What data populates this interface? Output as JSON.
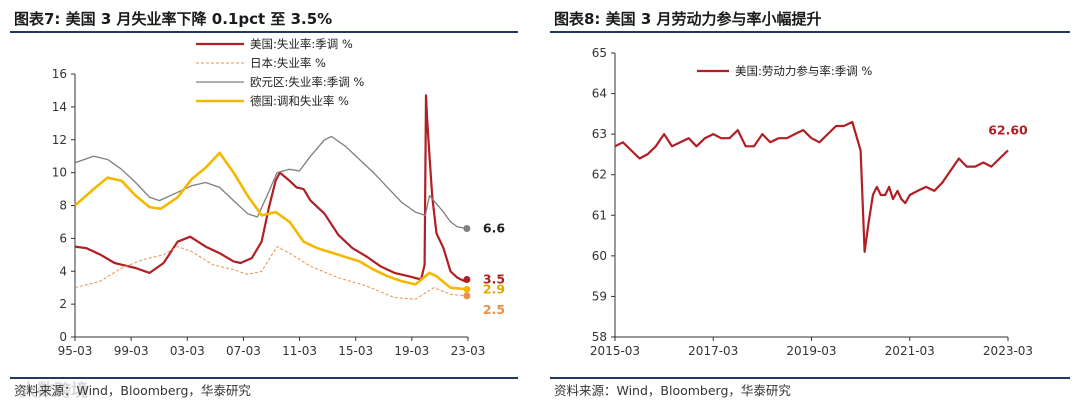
{
  "left": {
    "title": "图表7:  美国 3 月失业率下降 0.1pct 至 3.5%",
    "source": "资料来源：Wind，Bloomberg，华泰研究",
    "watermark": "大数跨境"
  },
  "right": {
    "title": "图表8:  美国 3 月劳动力参与率小幅提升",
    "source": "资料来源：Wind，Bloomberg，华泰研究"
  },
  "chart_data": [
    {
      "type": "line",
      "title": "美国 3 月失业率下降 0.1pct 至 3.5%",
      "xlabel": "",
      "ylabel": "",
      "xlim": [
        1995.17,
        2023.25
      ],
      "ylim": [
        0,
        16
      ],
      "x_ticks": [
        "95-03",
        "99-03",
        "03-03",
        "07-03",
        "11-03",
        "15-03",
        "19-03",
        "23-03"
      ],
      "y_ticks": [
        0,
        2,
        4,
        6,
        8,
        10,
        12,
        14,
        16
      ],
      "legend_position": "top-center",
      "grid": false,
      "series": [
        {
          "name": "美国:失业率:季调 %",
          "color": "#b01f24",
          "style": "solid",
          "end_label": "3.5",
          "x": [
            1995.17,
            1996.0,
            1997.0,
            1998.0,
            1998.5,
            1999.5,
            2000.5,
            2001.5,
            2002.5,
            2003.4,
            2004.5,
            2005.5,
            2006.5,
            2007.0,
            2007.8,
            2008.5,
            2009.0,
            2009.5,
            2009.8,
            2010.5,
            2011.0,
            2011.5,
            2012.0,
            2013.0,
            2014.0,
            2015.0,
            2016.0,
            2017.0,
            2018.0,
            2019.0,
            2019.9,
            2020.15,
            2020.25,
            2020.33,
            2020.5,
            2020.7,
            2021.0,
            2021.5,
            2022.0,
            2022.5,
            2023.0,
            2023.17
          ],
          "y": [
            5.5,
            5.4,
            5.0,
            4.5,
            4.4,
            4.2,
            3.9,
            4.5,
            5.8,
            6.1,
            5.5,
            5.1,
            4.6,
            4.5,
            4.8,
            5.8,
            7.8,
            9.5,
            10.0,
            9.5,
            9.1,
            9.0,
            8.3,
            7.5,
            6.2,
            5.4,
            4.9,
            4.3,
            3.9,
            3.7,
            3.5,
            4.4,
            14.7,
            13.3,
            11.0,
            8.5,
            6.3,
            5.4,
            4.0,
            3.6,
            3.4,
            3.5
          ]
        },
        {
          "name": "日本:失业率 %",
          "color": "#e8904c",
          "style": "dashed",
          "end_label": "2.5",
          "x": [
            1995.17,
            1997.0,
            1998.5,
            2000.0,
            2001.5,
            2002.5,
            2003.5,
            2005.0,
            2006.5,
            2007.5,
            2008.5,
            2009.6,
            2010.5,
            2012.0,
            2014.0,
            2016.0,
            2018.0,
            2019.5,
            2020.8,
            2022.0,
            2023.17
          ],
          "y": [
            3.0,
            3.4,
            4.2,
            4.7,
            5.0,
            5.5,
            5.2,
            4.4,
            4.1,
            3.8,
            4.0,
            5.5,
            5.1,
            4.3,
            3.6,
            3.1,
            2.4,
            2.3,
            3.0,
            2.6,
            2.5
          ]
        },
        {
          "name": "欧元区:失业率:季调 %",
          "color": "#7f7f7f",
          "style": "solid",
          "end_label": "6.6",
          "x": [
            1995.17,
            1996.5,
            1997.5,
            1998.5,
            1999.5,
            2000.5,
            2001.2,
            2002.5,
            2003.5,
            2004.5,
            2005.5,
            2006.5,
            2007.5,
            2008.2,
            2009.0,
            2009.6,
            2010.5,
            2011.2,
            2012.0,
            2013.0,
            2013.5,
            2014.5,
            2015.5,
            2016.5,
            2017.5,
            2018.5,
            2019.5,
            2020.2,
            2020.5,
            2020.8,
            2021.5,
            2022.0,
            2022.5,
            2023.17
          ],
          "y": [
            10.6,
            11.0,
            10.8,
            10.2,
            9.4,
            8.5,
            8.3,
            8.8,
            9.2,
            9.4,
            9.1,
            8.3,
            7.5,
            7.3,
            8.8,
            10.0,
            10.2,
            10.1,
            11.0,
            12.0,
            12.2,
            11.6,
            10.8,
            10.0,
            9.1,
            8.2,
            7.6,
            7.4,
            8.6,
            8.3,
            7.6,
            7.0,
            6.7,
            6.6
          ]
        },
        {
          "name": "德国:调和失业率 %",
          "color": "#f5b800",
          "style": "solid",
          "end_label": "2.9",
          "x": [
            1995.17,
            1996.5,
            1997.5,
            1998.5,
            1999.5,
            2000.5,
            2001.3,
            2002.5,
            2003.5,
            2004.5,
            2005.5,
            2006.5,
            2007.5,
            2008.5,
            2009.5,
            2010.5,
            2011.5,
            2012.5,
            2014.0,
            2015.5,
            2016.5,
            2017.5,
            2018.5,
            2019.5,
            2020.5,
            2021.0,
            2022.0,
            2023.17
          ],
          "y": [
            8.0,
            9.0,
            9.7,
            9.5,
            8.6,
            7.9,
            7.8,
            8.5,
            9.6,
            10.3,
            11.2,
            10.0,
            8.6,
            7.4,
            7.6,
            7.0,
            5.8,
            5.4,
            5.0,
            4.6,
            4.1,
            3.7,
            3.4,
            3.2,
            3.9,
            3.7,
            3.0,
            2.9
          ]
        }
      ]
    },
    {
      "type": "line",
      "title": "美国 3 月劳动力参与率小幅提升",
      "xlabel": "",
      "ylabel": "",
      "xlim": [
        2015.17,
        2023.17
      ],
      "ylim": [
        58,
        65
      ],
      "x_ticks": [
        "2015-03",
        "2017-03",
        "2019-03",
        "2021-03",
        "2023-03"
      ],
      "y_ticks": [
        58,
        59,
        60,
        61,
        62,
        63,
        64,
        65
      ],
      "legend_position": "top-left",
      "grid": false,
      "series": [
        {
          "name": "美国:劳动力参与率:季调 %",
          "color": "#b01f24",
          "style": "solid",
          "end_label": "62.60",
          "x": [
            2015.17,
            2015.33,
            2015.5,
            2015.67,
            2015.83,
            2016.0,
            2016.17,
            2016.33,
            2016.5,
            2016.67,
            2016.83,
            2017.0,
            2017.17,
            2017.33,
            2017.5,
            2017.67,
            2017.83,
            2018.0,
            2018.17,
            2018.33,
            2018.5,
            2018.67,
            2018.83,
            2019.0,
            2019.17,
            2019.33,
            2019.5,
            2019.67,
            2019.83,
            2020.0,
            2020.17,
            2020.25,
            2020.33,
            2020.42,
            2020.5,
            2020.58,
            2020.67,
            2020.75,
            2020.83,
            2020.92,
            2021.0,
            2021.08,
            2021.17,
            2021.33,
            2021.5,
            2021.67,
            2021.83,
            2022.0,
            2022.17,
            2022.33,
            2022.5,
            2022.67,
            2022.83,
            2023.0,
            2023.17
          ],
          "y": [
            62.7,
            62.8,
            62.6,
            62.4,
            62.5,
            62.7,
            63.0,
            62.7,
            62.8,
            62.9,
            62.7,
            62.9,
            63.0,
            62.9,
            62.9,
            63.1,
            62.7,
            62.7,
            63.0,
            62.8,
            62.9,
            62.9,
            63.0,
            63.1,
            62.9,
            62.8,
            63.0,
            63.2,
            63.2,
            63.3,
            62.6,
            60.1,
            60.8,
            61.5,
            61.7,
            61.5,
            61.5,
            61.7,
            61.4,
            61.6,
            61.4,
            61.3,
            61.5,
            61.6,
            61.7,
            61.6,
            61.8,
            62.1,
            62.4,
            62.2,
            62.2,
            62.3,
            62.2,
            62.4,
            62.6
          ]
        }
      ]
    }
  ]
}
